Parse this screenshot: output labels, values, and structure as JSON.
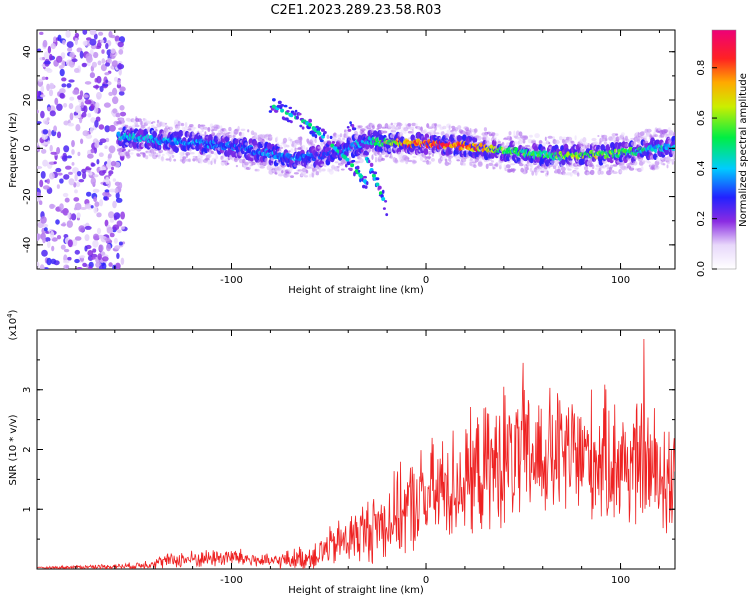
{
  "title": "C2E1.2023.289.23.58.R03",
  "colors": {
    "snr_line": "#ee2222",
    "spectrogram_main": "#6a22ee",
    "spectrogram_faint": "#cfb8f5"
  },
  "chart_data": [
    {
      "type": "heatmap",
      "xlabel": "Height of straight line (km)",
      "ylabel": "Frequency (Hz)",
      "xlim": [
        -200,
        128
      ],
      "ylim": [
        -50,
        49
      ],
      "xticks": [
        -100,
        0,
        100
      ],
      "yticks": [
        40,
        20,
        0,
        -20,
        -40
      ],
      "colorbar": {
        "label": "Normalized spectral amplitude",
        "ticks": [
          "0.0",
          "0.2",
          "0.4",
          "0.6",
          "0.8"
        ],
        "tick_values": [
          0.0,
          0.2,
          0.4,
          0.6,
          0.8
        ],
        "range": [
          0.0,
          0.95
        ]
      },
      "ridge": {
        "description_points_x": [
          -160,
          -130,
          -100,
          -70,
          -50,
          -30,
          -10,
          0,
          20,
          40,
          60,
          80,
          100,
          120,
          128
        ],
        "frequency_hz": [
          5,
          3,
          1,
          -4,
          -3,
          3,
          2,
          2,
          1,
          -1,
          -3,
          -3,
          -2,
          0,
          1
        ],
        "peak_amplitude": [
          0.45,
          0.4,
          0.35,
          0.4,
          0.3,
          0.45,
          0.85,
          0.9,
          0.95,
          0.6,
          0.55,
          0.7,
          0.6,
          0.45,
          0.4
        ]
      },
      "branches": [
        {
          "x": [
            -80,
            -60,
            -40,
            -30
          ],
          "y": [
            18,
            10,
            -5,
            -15
          ]
        },
        {
          "x": [
            -40,
            -30,
            -20
          ],
          "y": [
            10,
            -5,
            -25
          ]
        }
      ],
      "noise_region_x": [
        -200,
        -155
      ]
    },
    {
      "type": "line",
      "xlabel": "Height of straight line (km)",
      "ylabel": "SNR (10 * v/v)",
      "y_multiplier": "(x10",
      "y_multiplier_exp": "4",
      "y_multiplier_close": ")",
      "xlim": [
        -200,
        128
      ],
      "ylim": [
        0,
        4
      ],
      "xticks": [
        -100,
        0,
        100
      ],
      "yticks": [
        1,
        2,
        3
      ],
      "envelope_x": [
        -200,
        -150,
        -130,
        -100,
        -80,
        -60,
        -40,
        -20,
        0,
        20,
        40,
        60,
        80,
        100,
        120,
        128
      ],
      "envelope_mean": [
        0.02,
        0.05,
        0.15,
        0.2,
        0.12,
        0.2,
        0.5,
        0.8,
        1.2,
        1.5,
        1.8,
        1.9,
        1.9,
        1.8,
        1.6,
        1.5
      ],
      "envelope_spread": [
        0.01,
        0.05,
        0.12,
        0.15,
        0.1,
        0.2,
        0.4,
        0.6,
        0.8,
        0.9,
        1.0,
        1.0,
        1.0,
        1.0,
        1.0,
        1.0
      ],
      "series": [
        {
          "peaks": [
            {
              "x": 112,
              "y": 3.85
            },
            {
              "x": 50,
              "y": 3.45
            },
            {
              "x": 40,
              "y": 3.05
            }
          ]
        }
      ]
    }
  ]
}
